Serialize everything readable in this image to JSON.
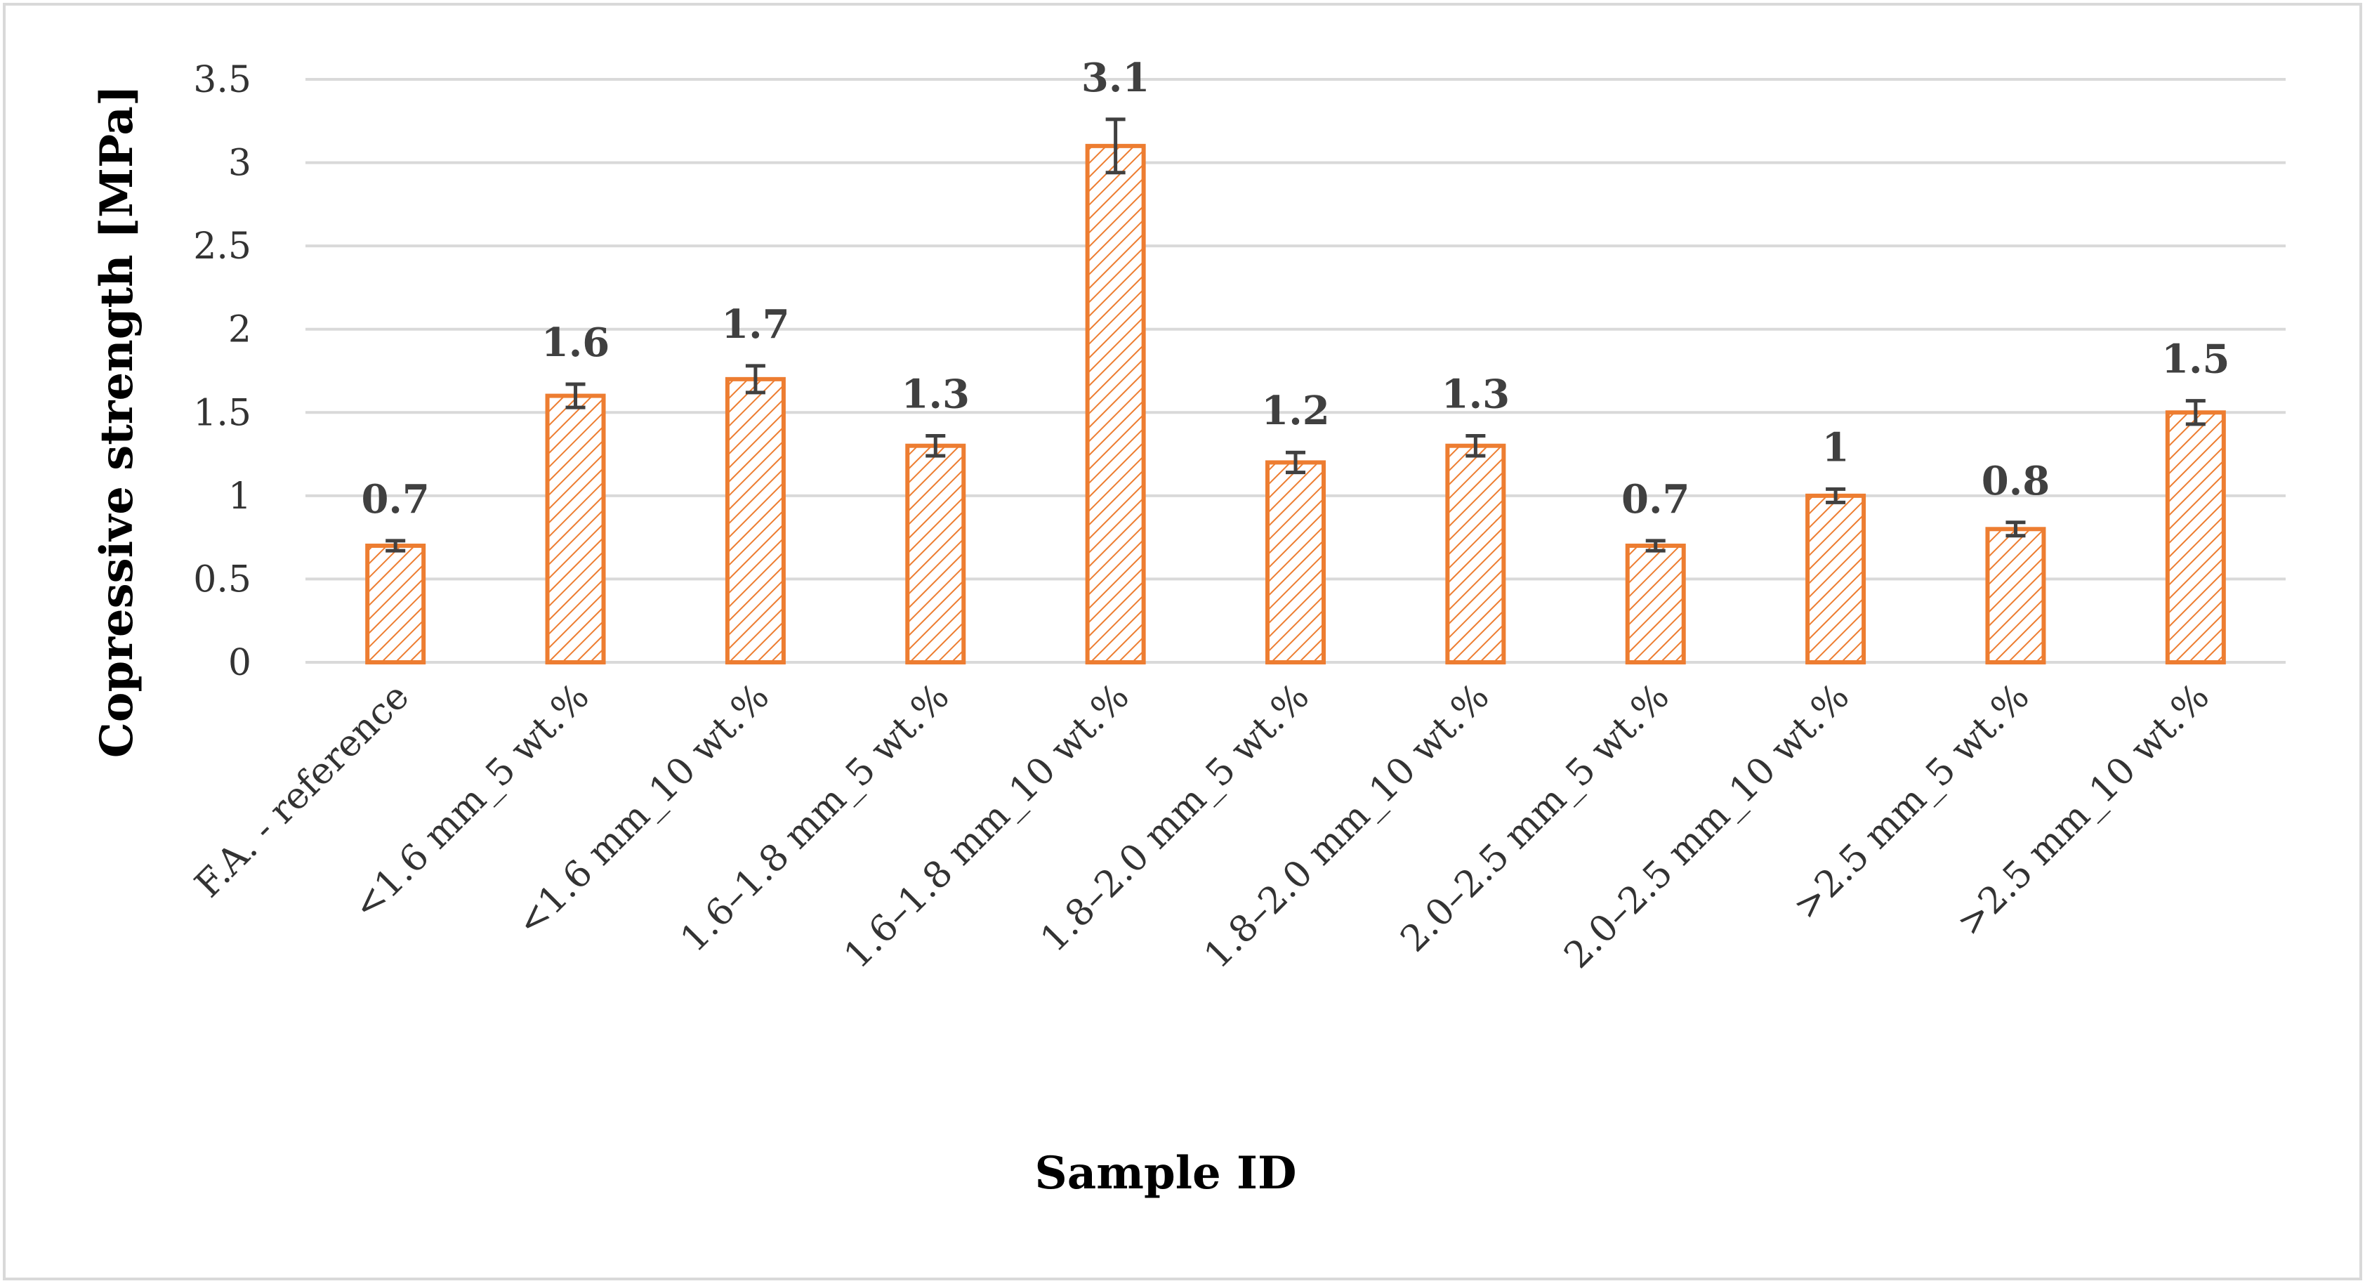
{
  "chart_data": {
    "type": "bar",
    "title": "",
    "xlabel": "Sample ID",
    "ylabel": "Copressive strength [MPa]",
    "ylim": [
      0,
      3.5
    ],
    "yticks": [
      0,
      0.5,
      1,
      1.5,
      2,
      2.5,
      3,
      3.5
    ],
    "ytick_labels": [
      "0",
      "0.5",
      "1",
      "1.5",
      "2",
      "2.5",
      "3",
      "3.5"
    ],
    "grid": true,
    "legend": "none",
    "categories": [
      "F.A. - reference",
      "<1.6 mm_5 wt.%",
      "<1.6 mm_10 wt.%",
      "1.6–1.8 mm_5 wt.%",
      "1.6–1.8 mm_10 wt.%",
      "1.8–2.0 mm_5 wt.%",
      "1.8–2.0 mm_10 wt.%",
      "2.0–2.5 mm_5 wt.%",
      "2.0–2.5 mm_10 wt.%",
      ">2.5 mm_5 wt.%",
      ">2.5 mm_10 wt.%"
    ],
    "values": [
      0.7,
      1.6,
      1.7,
      1.3,
      3.1,
      1.2,
      1.3,
      0.7,
      1.0,
      0.8,
      1.5
    ],
    "value_labels": [
      "0.7",
      "1.6",
      "1.7",
      "1.3",
      "3.1",
      "1.2",
      "1.3",
      "0.7",
      "1",
      "0.8",
      "1.5"
    ],
    "errors": [
      0.03,
      0.07,
      0.08,
      0.06,
      0.16,
      0.06,
      0.06,
      0.03,
      0.04,
      0.04,
      0.07
    ],
    "colors": {
      "bar_stroke": "#ED7D31",
      "bar_hatch": "#ED7D31",
      "grid": "#D9D9D9",
      "error_bar": "#404040",
      "border": "#D9D9D9"
    }
  }
}
